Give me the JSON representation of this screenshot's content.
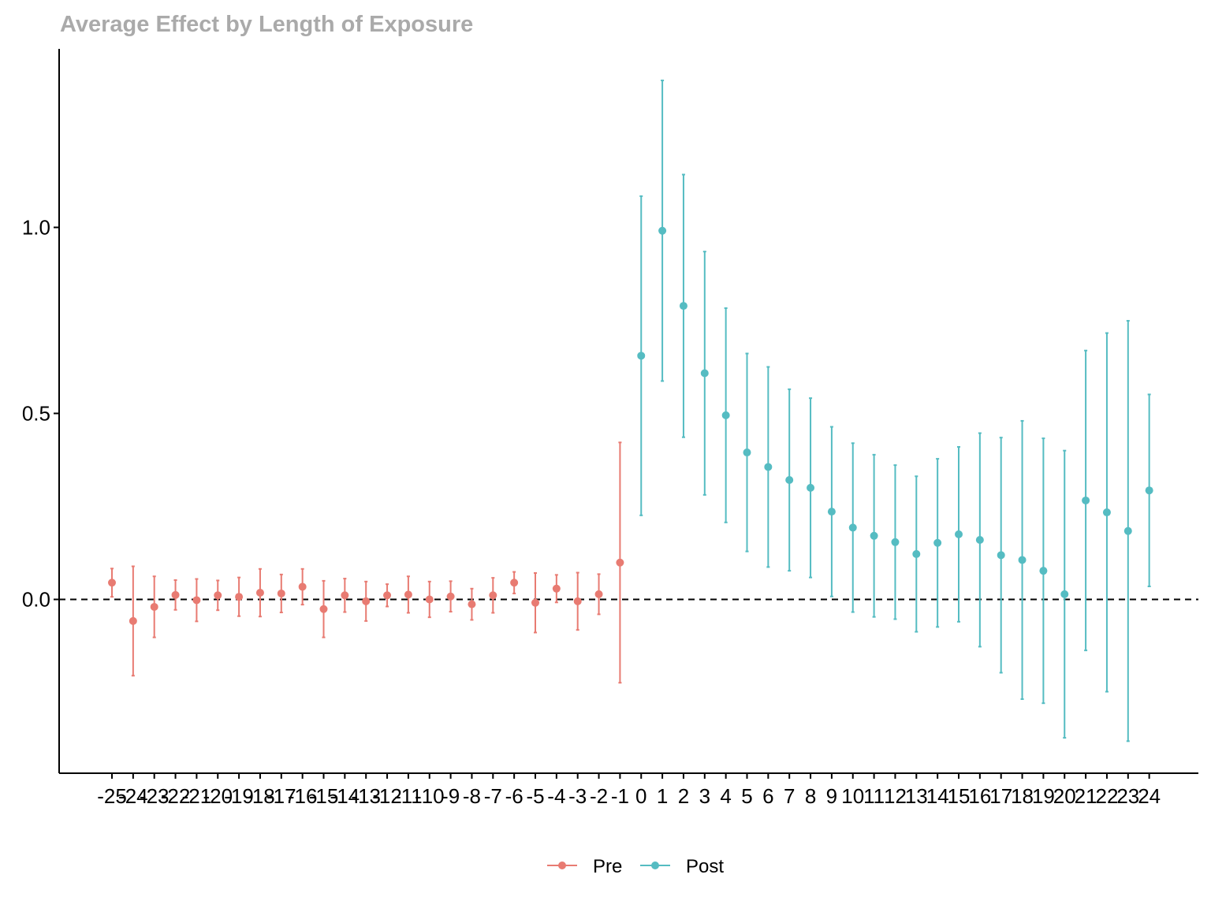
{
  "chart_data": {
    "type": "scatter",
    "title": "Average Effect by Length of Exposure",
    "xlabel": "",
    "ylabel": "",
    "ylim": [
      -0.47,
      1.47
    ],
    "yticks": [
      0.0,
      0.5,
      1.0
    ],
    "ytick_labels": [
      "0.0",
      "0.5",
      "1.0"
    ],
    "reference_line": {
      "y": 0,
      "style": "dashed"
    },
    "grid": false,
    "legend_position": "bottom",
    "categories": [
      "-25",
      "-24",
      "-23",
      "-22",
      "-21",
      "-20",
      "-19",
      "-18",
      "-17",
      "-16",
      "-15",
      "-14",
      "-13",
      "-12",
      "-11",
      "-10",
      "-9",
      "-8",
      "-7",
      "-6",
      "-5",
      "-4",
      "-3",
      "-2",
      "-1",
      "0",
      "1",
      "2",
      "3",
      "4",
      "5",
      "6",
      "7",
      "8",
      "9",
      "10",
      "11",
      "12",
      "13",
      "14",
      "15",
      "16",
      "17",
      "18",
      "19",
      "20",
      "21",
      "22",
      "23",
      "24"
    ],
    "series": [
      {
        "name": "Pre",
        "color": "#e87b72",
        "points": [
          {
            "x": -25,
            "y": 0.045,
            "lo": 0.007,
            "hi": 0.083
          },
          {
            "x": -24,
            "y": -0.058,
            "lo": -0.205,
            "hi": 0.089
          },
          {
            "x": -23,
            "y": -0.02,
            "lo": -0.102,
            "hi": 0.062
          },
          {
            "x": -22,
            "y": 0.012,
            "lo": -0.028,
            "hi": 0.052
          },
          {
            "x": -21,
            "y": -0.002,
            "lo": -0.059,
            "hi": 0.055
          },
          {
            "x": -20,
            "y": 0.011,
            "lo": -0.029,
            "hi": 0.051
          },
          {
            "x": -19,
            "y": 0.007,
            "lo": -0.045,
            "hi": 0.059
          },
          {
            "x": -18,
            "y": 0.018,
            "lo": -0.046,
            "hi": 0.082
          },
          {
            "x": -17,
            "y": 0.016,
            "lo": -0.035,
            "hi": 0.067
          },
          {
            "x": -16,
            "y": 0.034,
            "lo": -0.014,
            "hi": 0.082
          },
          {
            "x": -15,
            "y": -0.026,
            "lo": -0.102,
            "hi": 0.05
          },
          {
            "x": -14,
            "y": 0.011,
            "lo": -0.034,
            "hi": 0.056
          },
          {
            "x": -13,
            "y": -0.005,
            "lo": -0.058,
            "hi": 0.048
          },
          {
            "x": -12,
            "y": 0.011,
            "lo": -0.019,
            "hi": 0.041
          },
          {
            "x": -11,
            "y": 0.013,
            "lo": -0.036,
            "hi": 0.062
          },
          {
            "x": -10,
            "y": 0.0,
            "lo": -0.048,
            "hi": 0.048
          },
          {
            "x": -9,
            "y": 0.008,
            "lo": -0.033,
            "hi": 0.049
          },
          {
            "x": -8,
            "y": -0.013,
            "lo": -0.055,
            "hi": 0.029
          },
          {
            "x": -7,
            "y": 0.011,
            "lo": -0.036,
            "hi": 0.058
          },
          {
            "x": -6,
            "y": 0.045,
            "lo": 0.016,
            "hi": 0.074
          },
          {
            "x": -5,
            "y": -0.009,
            "lo": -0.089,
            "hi": 0.071
          },
          {
            "x": -4,
            "y": 0.029,
            "lo": -0.008,
            "hi": 0.066
          },
          {
            "x": -3,
            "y": -0.005,
            "lo": -0.082,
            "hi": 0.072
          },
          {
            "x": -2,
            "y": 0.014,
            "lo": -0.04,
            "hi": 0.068
          },
          {
            "x": -1,
            "y": 0.099,
            "lo": -0.224,
            "hi": 0.422
          }
        ]
      },
      {
        "name": "Post",
        "color": "#55bcc2",
        "points": [
          {
            "x": 0,
            "y": 0.655,
            "lo": 0.226,
            "hi": 1.084
          },
          {
            "x": 1,
            "y": 0.991,
            "lo": 0.587,
            "hi": 1.395
          },
          {
            "x": 2,
            "y": 0.789,
            "lo": 0.436,
            "hi": 1.142
          },
          {
            "x": 3,
            "y": 0.608,
            "lo": 0.281,
            "hi": 0.935
          },
          {
            "x": 4,
            "y": 0.495,
            "lo": 0.207,
            "hi": 0.783
          },
          {
            "x": 5,
            "y": 0.395,
            "lo": 0.129,
            "hi": 0.661
          },
          {
            "x": 6,
            "y": 0.356,
            "lo": 0.087,
            "hi": 0.625
          },
          {
            "x": 7,
            "y": 0.321,
            "lo": 0.077,
            "hi": 0.565
          },
          {
            "x": 8,
            "y": 0.3,
            "lo": 0.059,
            "hi": 0.541
          },
          {
            "x": 9,
            "y": 0.236,
            "lo": 0.008,
            "hi": 0.464
          },
          {
            "x": 10,
            "y": 0.193,
            "lo": -0.034,
            "hi": 0.42
          },
          {
            "x": 11,
            "y": 0.171,
            "lo": -0.047,
            "hi": 0.389
          },
          {
            "x": 12,
            "y": 0.154,
            "lo": -0.053,
            "hi": 0.361
          },
          {
            "x": 13,
            "y": 0.122,
            "lo": -0.087,
            "hi": 0.331
          },
          {
            "x": 14,
            "y": 0.152,
            "lo": -0.074,
            "hi": 0.378
          },
          {
            "x": 15,
            "y": 0.175,
            "lo": -0.06,
            "hi": 0.41
          },
          {
            "x": 16,
            "y": 0.16,
            "lo": -0.127,
            "hi": 0.447
          },
          {
            "x": 17,
            "y": 0.119,
            "lo": -0.197,
            "hi": 0.435
          },
          {
            "x": 18,
            "y": 0.106,
            "lo": -0.268,
            "hi": 0.48
          },
          {
            "x": 19,
            "y": 0.077,
            "lo": -0.279,
            "hi": 0.433
          },
          {
            "x": 20,
            "y": 0.014,
            "lo": -0.372,
            "hi": 0.4
          },
          {
            "x": 21,
            "y": 0.266,
            "lo": -0.137,
            "hi": 0.669
          },
          {
            "x": 22,
            "y": 0.234,
            "lo": -0.248,
            "hi": 0.716
          },
          {
            "x": 23,
            "y": 0.184,
            "lo": -0.381,
            "hi": 0.749
          },
          {
            "x": 24,
            "y": 0.293,
            "lo": 0.035,
            "hi": 0.551
          }
        ]
      }
    ]
  }
}
